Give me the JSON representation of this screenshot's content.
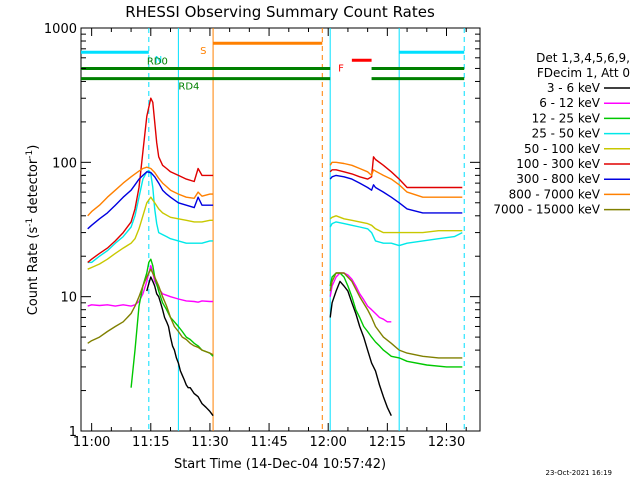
{
  "chart_data": {
    "type": "line",
    "title": "RHESSI Observing Summary Count Rates",
    "xlabel": "Start Time (14-Dec-04 10:57:42)",
    "ylabel_main": "Count Rate (s",
    "ylabel_sup1": "-1",
    "ylabel_mid": " detector",
    "ylabel_sup2": "-1",
    "ylabel_end": ")",
    "x_range_min": [
      -2.7,
      98.5
    ],
    "y_log_range": [
      1,
      1000
    ],
    "x_ticks": [
      {
        "m": 0,
        "label": "11:00"
      },
      {
        "m": 15,
        "label": "11:15"
      },
      {
        "m": 30,
        "label": "11:30"
      },
      {
        "m": 45,
        "label": "11:45"
      },
      {
        "m": 60,
        "label": "12:00"
      },
      {
        "m": 75,
        "label": "12:15"
      },
      {
        "m": 90,
        "label": "12:30"
      }
    ],
    "y_ticks": [
      {
        "v": 1,
        "label": "1"
      },
      {
        "v": 10,
        "label": "10"
      },
      {
        "v": 100,
        "label": "100"
      },
      {
        "v": 1000,
        "label": "1000"
      }
    ],
    "legend_title_1": "Det 1,3,4,5,6,9,",
    "legend_title_2": "FDecim 1, Att 0",
    "series": [
      {
        "name": "3 - 6 keV",
        "color": "#000000",
        "x": [
          14,
          14.5,
          15,
          15.5,
          16,
          16.5,
          17,
          17.5,
          18,
          18.5,
          19,
          19.5,
          20,
          20.5,
          21,
          21.5,
          22,
          22.5,
          23,
          23.5,
          24,
          24.5,
          25,
          25.5,
          26,
          27,
          28,
          29,
          30,
          30.8,
          60.5,
          61,
          62,
          63,
          64,
          65,
          66,
          67,
          68,
          69,
          70,
          71,
          72,
          73,
          74,
          75,
          76
        ],
        "y": [
          11,
          12.5,
          14,
          13,
          12,
          10.5,
          10,
          9,
          8,
          7,
          6.5,
          6,
          5,
          4.3,
          4,
          3.5,
          3.2,
          2.8,
          2.6,
          2.4,
          2.2,
          2.1,
          2.1,
          2,
          1.9,
          1.8,
          1.6,
          1.5,
          1.4,
          1.3,
          7,
          9,
          11,
          13,
          12,
          11,
          9,
          7.5,
          6,
          5,
          4,
          3.2,
          2.8,
          2.2,
          1.8,
          1.5,
          1.3
        ]
      },
      {
        "name": "6 - 12 keV",
        "color": "#ff00ff",
        "x": [
          -1,
          0,
          2,
          4,
          6,
          8,
          10,
          11,
          12,
          13,
          14,
          14.5,
          15,
          15.5,
          16,
          17,
          18,
          20,
          22,
          24,
          26,
          27,
          28,
          30,
          30.8,
          60.5,
          61,
          62,
          63,
          64,
          65,
          66,
          67,
          68,
          69,
          70,
          71,
          72,
          73,
          74,
          75,
          76
        ],
        "y": [
          8.5,
          8.7,
          8.6,
          8.7,
          8.5,
          8.7,
          8.5,
          8.7,
          9.2,
          10.5,
          13,
          15,
          17,
          15,
          13,
          11.5,
          10.5,
          10,
          9.6,
          9.3,
          9.2,
          9.1,
          9.3,
          9.2,
          9.2,
          10,
          12,
          14,
          15,
          15,
          14.5,
          13.5,
          12,
          10.5,
          9.5,
          8.5,
          8,
          7.5,
          7,
          6.8,
          6.5,
          6.5
        ]
      },
      {
        "name": "12 - 25 keV",
        "color": "#00c800",
        "x": [
          10,
          11,
          12,
          13,
          14,
          14.5,
          15,
          15.5,
          16,
          17,
          18,
          19,
          20,
          21,
          22,
          23,
          24,
          25,
          26,
          27,
          28,
          29,
          30,
          30.8,
          60.5,
          61,
          62,
          63,
          64,
          65,
          66,
          67,
          68,
          69,
          70,
          71,
          72,
          73,
          74,
          75,
          76,
          78,
          80,
          85,
          90,
          94
        ],
        "y": [
          2.1,
          4,
          8.5,
          12,
          15,
          18,
          19,
          17,
          14,
          11,
          9,
          8,
          7,
          6.5,
          6,
          5.5,
          5,
          4.8,
          4.5,
          4.3,
          4,
          3.9,
          3.8,
          3.6,
          12,
          14,
          15,
          15,
          14,
          12,
          10,
          8,
          7,
          6,
          5.5,
          5,
          4.6,
          4.3,
          4,
          3.8,
          3.6,
          3.5,
          3.3,
          3.1,
          3,
          3
        ]
      },
      {
        "name": "25 - 50 keV",
        "color": "#00e8e8",
        "x": [
          -1,
          0,
          2,
          4,
          6,
          8,
          10,
          11,
          12,
          13,
          14,
          14.5,
          15,
          15.5,
          16,
          16.5,
          17,
          18,
          19,
          20,
          22,
          24,
          26,
          28,
          30,
          30.8,
          60.5,
          61,
          62,
          64,
          66,
          68,
          70,
          71,
          72,
          74,
          76,
          78,
          80,
          84,
          88,
          92,
          94
        ],
        "y": [
          18,
          18,
          20,
          22,
          25,
          28,
          33,
          40,
          55,
          75,
          85,
          87,
          82,
          65,
          45,
          35,
          30,
          29,
          28,
          27,
          26,
          25,
          25,
          25,
          26,
          26,
          33,
          35,
          36,
          35,
          34,
          33,
          32,
          30,
          26,
          25,
          25,
          24,
          25,
          26,
          27,
          28,
          30
        ]
      },
      {
        "name": "50 - 100 keV",
        "color": "#c8c800",
        "x": [
          -1,
          0,
          2,
          4,
          6,
          8,
          10,
          11,
          12,
          13,
          14,
          15,
          16,
          17,
          18,
          20,
          22,
          24,
          26,
          28,
          30,
          30.8,
          60.5,
          61,
          62,
          64,
          66,
          68,
          70,
          71,
          72,
          74,
          76,
          78,
          80,
          84,
          88,
          92,
          94
        ],
        "y": [
          16,
          16.5,
          17.5,
          19,
          21,
          23,
          25,
          27,
          32,
          40,
          50,
          55,
          50,
          45,
          42,
          39,
          38,
          37,
          36,
          36,
          37,
          37,
          38,
          39,
          40,
          38,
          37,
          36,
          35,
          34,
          32,
          30,
          30,
          30,
          30,
          30,
          31,
          31,
          31
        ]
      },
      {
        "name": "100 - 300 keV",
        "color": "#e00000",
        "x": [
          -1,
          0,
          2,
          4,
          6,
          8,
          10,
          11,
          12,
          13,
          14,
          15,
          15.5,
          16,
          16.5,
          17,
          18,
          19,
          20,
          22,
          24,
          26,
          27,
          28,
          30,
          30.8,
          60.5,
          61,
          62,
          64,
          66,
          68,
          70,
          71,
          71.5,
          72,
          74,
          76,
          78,
          80,
          84,
          88,
          92,
          94
        ],
        "y": [
          18,
          19,
          21,
          23,
          26,
          30,
          36,
          45,
          65,
          120,
          220,
          300,
          280,
          200,
          140,
          110,
          95,
          90,
          85,
          80,
          75,
          72,
          90,
          80,
          80,
          80,
          85,
          88,
          88,
          85,
          82,
          78,
          75,
          78,
          110,
          105,
          95,
          85,
          75,
          65,
          65,
          65,
          65,
          65
        ]
      },
      {
        "name": "300 - 800 keV",
        "color": "#0000e0",
        "x": [
          -1,
          0,
          2,
          4,
          6,
          8,
          10,
          11,
          12,
          13,
          14,
          15,
          16,
          17,
          18,
          19,
          20,
          22,
          24,
          26,
          27,
          28,
          30,
          30.8,
          60.5,
          61,
          62,
          64,
          66,
          68,
          70,
          71,
          71.5,
          72,
          74,
          76,
          78,
          80,
          84,
          88,
          92,
          94
        ],
        "y": [
          32,
          34,
          38,
          42,
          48,
          55,
          62,
          68,
          75,
          80,
          85,
          84,
          78,
          70,
          62,
          58,
          55,
          50,
          48,
          46,
          55,
          48,
          48,
          48,
          75,
          78,
          80,
          78,
          75,
          70,
          65,
          62,
          68,
          65,
          60,
          55,
          50,
          45,
          42,
          42,
          42,
          42
        ]
      },
      {
        "name": "800 - 7000 keV",
        "color": "#ff8000",
        "x": [
          -1,
          0,
          2,
          4,
          6,
          8,
          10,
          11,
          12,
          13,
          14,
          15,
          16,
          17,
          18,
          19,
          20,
          22,
          24,
          26,
          27,
          28,
          30,
          30.8,
          60.5,
          61,
          62,
          64,
          66,
          68,
          70,
          71,
          71.5,
          72,
          74,
          76,
          78,
          80,
          84,
          88,
          92,
          94
        ],
        "y": [
          40,
          43,
          48,
          55,
          62,
          70,
          78,
          82,
          86,
          90,
          92,
          90,
          84,
          76,
          70,
          66,
          62,
          58,
          55,
          54,
          60,
          56,
          58,
          58,
          95,
          100,
          100,
          98,
          95,
          90,
          85,
          80,
          88,
          86,
          80,
          75,
          68,
          60,
          55,
          55,
          55,
          55
        ]
      },
      {
        "name": "7000 - 15000 keV",
        "color": "#808000",
        "x": [
          -1,
          0,
          2,
          4,
          6,
          8,
          10,
          11,
          12,
          13,
          14,
          15,
          16,
          17,
          18,
          19,
          20,
          21,
          22,
          23,
          24,
          25,
          26,
          27,
          28,
          29,
          30,
          30.8,
          60.5,
          61,
          62,
          64,
          66,
          68,
          70,
          71,
          72,
          74,
          76,
          78,
          80,
          84,
          88,
          92,
          94
        ],
        "y": [
          4.5,
          4.7,
          5,
          5.5,
          6,
          6.5,
          7.5,
          8.5,
          10,
          12,
          14,
          16,
          14,
          12,
          10,
          8.5,
          7,
          6,
          5.5,
          5,
          4.8,
          4.5,
          4.3,
          4.2,
          4,
          3.9,
          3.8,
          3.7,
          11,
          13,
          15,
          15,
          13,
          10,
          8,
          7,
          6,
          5,
          4.5,
          4,
          3.8,
          3.6,
          3.5,
          3.5,
          3.5
        ]
      }
    ],
    "flags": [
      {
        "name": "N",
        "color": "#00e0ff",
        "segments": [
          [
            -2.7,
            14.5
          ],
          [
            78,
            94.5
          ]
        ],
        "y": 660,
        "label_m": 16
      },
      {
        "name": "RD0",
        "color": "#008000",
        "segments": [
          [
            -2.7,
            60.5
          ],
          [
            71,
            94.5
          ]
        ],
        "y": 500,
        "label_m": 14
      },
      {
        "name": "RD4",
        "color": "#008000",
        "segments": [
          [
            -2.7,
            60.5
          ],
          [
            71,
            94.5
          ]
        ],
        "y": 420,
        "label_m": 22
      },
      {
        "name": "S",
        "color": "#ff8000",
        "segments": [
          [
            30.8,
            58.5
          ]
        ],
        "y": 770,
        "label_m": 27.5
      },
      {
        "name": "F",
        "color": "#ff0000",
        "segments": [
          [
            66,
            71
          ]
        ],
        "y": 575,
        "label_m": 62.5
      }
    ],
    "vlines": [
      {
        "m": 14.5,
        "color": "#00e0ff",
        "style": "dash"
      },
      {
        "m": 22,
        "color": "#00e0ff",
        "style": "solid"
      },
      {
        "m": 30.8,
        "color": "#ff8000",
        "style": "solid"
      },
      {
        "m": 58.5,
        "color": "#ff8000",
        "style": "dash"
      },
      {
        "m": 60.5,
        "color": "#00e0ff",
        "style": "solid"
      },
      {
        "m": 78,
        "color": "#00e0ff",
        "style": "solid"
      },
      {
        "m": 94.5,
        "color": "#00e0ff",
        "style": "dash"
      }
    ]
  },
  "footer": {
    "timestamp": "23-Oct-2021 16:19"
  }
}
